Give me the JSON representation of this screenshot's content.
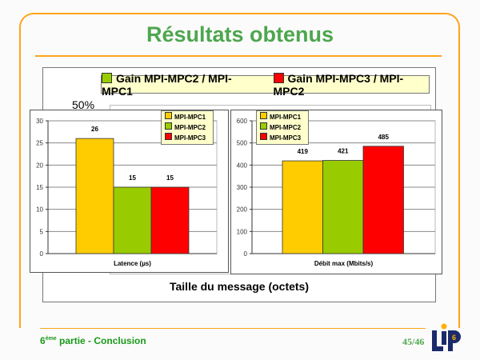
{
  "slide": {
    "title": "Résultats obtenus",
    "footer_number": "6",
    "footer_sup": "ème",
    "footer_text": " partie - Conclusion",
    "page": "45/46",
    "logo_text": "LIP6"
  },
  "background_chart": {
    "legend": [
      "Gain MPI-MPC2 / MPI-MPC1",
      "Gain MPI-MPC3 / MPI-MPC2"
    ],
    "legend_colors": [
      "#99cc00",
      "#ff0000"
    ],
    "ytick_visible": "50%",
    "xlabel": "Taille du message (octets)"
  },
  "chart_data": [
    {
      "type": "bar",
      "xlabel": "Latence (µs)",
      "ylim": [
        0,
        30
      ],
      "yticks": [
        "0",
        "5",
        "10",
        "15",
        "20",
        "25",
        "30"
      ],
      "series": [
        {
          "name": "MPI-MPC1",
          "values": [
            26
          ],
          "color": "#ffcc00"
        },
        {
          "name": "MPI-MPC2",
          "values": [
            15
          ],
          "color": "#99cc00"
        },
        {
          "name": "MPI-MPC3",
          "values": [
            15
          ],
          "color": "#ff0000"
        }
      ],
      "data_labels": [
        "26",
        "15",
        "15"
      ],
      "legend": "top-right",
      "grid": true
    },
    {
      "type": "bar",
      "xlabel": "Débit max (Mbits/s)",
      "ylim": [
        0,
        600
      ],
      "yticks": [
        "0",
        "100",
        "200",
        "300",
        "400",
        "500",
        "600"
      ],
      "series": [
        {
          "name": "MPI-MPC1",
          "values": [
            419
          ],
          "color": "#ffcc00"
        },
        {
          "name": "MPI-MPC2",
          "values": [
            421
          ],
          "color": "#99cc00"
        },
        {
          "name": "MPI-MPC3",
          "values": [
            485
          ],
          "color": "#ff0000"
        }
      ],
      "data_labels": [
        "419",
        "421",
        "485"
      ],
      "legend": "top-left",
      "grid": true
    }
  ]
}
